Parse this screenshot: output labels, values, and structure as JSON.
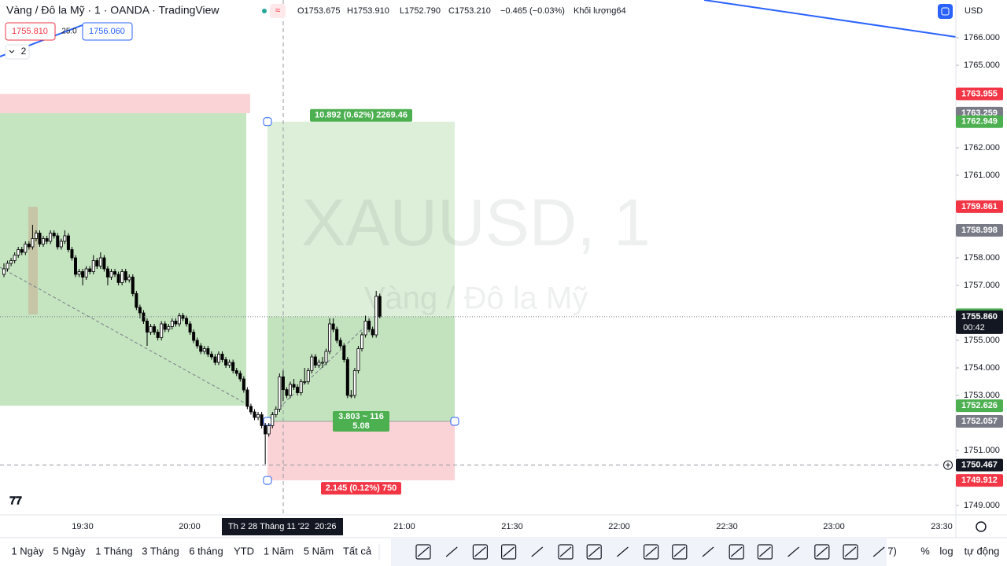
{
  "header": {
    "title": "Vàng / Đô la Mỹ · 1 · OANDA · TradingView",
    "open": "O1753.675",
    "high": "H1753.910",
    "low": "L1752.790",
    "close": "C1753.210",
    "change": "−0.465 (−0.03%)",
    "volume": "Khối lượng64",
    "currency": "USD"
  },
  "trade_buttons": {
    "sell": "1755.810",
    "spread": "25.0",
    "buy": "1756.060",
    "indicators": "2"
  },
  "chart_data": {
    "type": "candlestick",
    "watermark": "XAUUSD, 1",
    "watermark_subtitle": "Vàng / Đô la Mỹ",
    "up_color": "#ffffff",
    "down_color": "#000000",
    "ylim": [
      1748.657,
      1767.371
    ],
    "yticks": [
      {
        "value": 1749,
        "label": "1749.000"
      },
      {
        "value": 1751,
        "label": "1751.000"
      },
      {
        "value": 1753,
        "label": "1753.000"
      },
      {
        "value": 1754,
        "label": "1754.000"
      },
      {
        "value": 1755,
        "label": "1755.000"
      },
      {
        "value": 1757,
        "label": "1757.000"
      },
      {
        "value": 1758,
        "label": "1758.000"
      },
      {
        "value": 1761,
        "label": "1761.000"
      },
      {
        "value": 1762,
        "label": "1762.000"
      },
      {
        "value": 1765,
        "label": "1765.000"
      },
      {
        "value": 1766,
        "label": "1766.000"
      }
    ],
    "price_labels": [
      {
        "value": 1763.955,
        "color": "#f23645"
      },
      {
        "value": 1763.259,
        "color": "#787b86"
      },
      {
        "value": 1762.949,
        "color": "#4caf50"
      },
      {
        "value": 1759.861,
        "color": "#f23645"
      },
      {
        "value": 1758.998,
        "color": "#787b86"
      },
      {
        "value": 1755.932,
        "color": "#4caf50"
      },
      {
        "value": 1755.86,
        "label": "1755.860",
        "color": "#131722"
      },
      {
        "value": 1752.626,
        "color": "#4caf50"
      },
      {
        "value": 1752.057,
        "color": "#787b86"
      },
      {
        "value": 1750.467,
        "color": "#131722"
      },
      {
        "value": 1749.912,
        "color": "#f23645"
      }
    ],
    "countdown": "00:42",
    "positions": [
      {
        "entry": 1763.259,
        "stop": 1763.955,
        "target": 1752.626
      },
      {
        "entry": 1752.057,
        "stop": 1749.912,
        "target": 1762.949
      }
    ],
    "position_labels": {
      "target": "10.892 (0.62%) 2269.46",
      "ratio": "3.803 ~ 116",
      "qty": "5.08",
      "stop": "2.145 (0.12%) 750"
    },
    "ohlc": [
      [
        1757.4,
        1757.8,
        1757.3,
        1757.6
      ],
      [
        1757.6,
        1757.9,
        1757.5,
        1757.8
      ],
      [
        1757.8,
        1758.0,
        1757.7,
        1757.9
      ],
      [
        1757.9,
        1758.2,
        1757.8,
        1758.1
      ],
      [
        1758.1,
        1758.4,
        1758.0,
        1758.3
      ],
      [
        1758.3,
        1758.4,
        1758.1,
        1758.2
      ],
      [
        1758.2,
        1758.6,
        1758.1,
        1758.5
      ],
      [
        1758.5,
        1758.6,
        1758.3,
        1758.4
      ],
      [
        1758.4,
        1759.2,
        1758.3,
        1758.7
      ],
      [
        1758.7,
        1759.0,
        1758.6,
        1758.9
      ],
      [
        1758.9,
        1759.0,
        1758.4,
        1758.5
      ],
      [
        1758.5,
        1758.8,
        1758.4,
        1758.7
      ],
      [
        1758.7,
        1758.8,
        1758.5,
        1758.6
      ],
      [
        1758.6,
        1759.0,
        1758.5,
        1758.9
      ],
      [
        1758.9,
        1759.0,
        1758.7,
        1758.8
      ],
      [
        1758.8,
        1758.9,
        1758.3,
        1758.4
      ],
      [
        1758.4,
        1758.7,
        1758.3,
        1758.6
      ],
      [
        1758.6,
        1759.0,
        1758.5,
        1758.8
      ],
      [
        1758.8,
        1758.9,
        1758.2,
        1758.3
      ],
      [
        1758.3,
        1758.4,
        1757.9,
        1758.0
      ],
      [
        1758.0,
        1758.1,
        1757.3,
        1757.4
      ],
      [
        1757.4,
        1757.6,
        1757.3,
        1757.5
      ],
      [
        1757.5,
        1757.6,
        1757.0,
        1757.3
      ],
      [
        1757.3,
        1757.7,
        1757.2,
        1757.6
      ],
      [
        1757.6,
        1757.7,
        1757.4,
        1757.5
      ],
      [
        1757.5,
        1758.1,
        1757.4,
        1757.9
      ],
      [
        1757.9,
        1758.0,
        1757.6,
        1757.7
      ],
      [
        1757.7,
        1758.2,
        1757.6,
        1758.0
      ],
      [
        1758.0,
        1758.1,
        1757.5,
        1757.6
      ],
      [
        1757.6,
        1757.7,
        1757.0,
        1757.3
      ],
      [
        1757.3,
        1757.6,
        1757.2,
        1757.5
      ],
      [
        1757.5,
        1757.6,
        1757.3,
        1757.4
      ],
      [
        1757.4,
        1757.5,
        1757.0,
        1757.1
      ],
      [
        1757.1,
        1757.6,
        1757.0,
        1757.5
      ],
      [
        1757.5,
        1757.6,
        1757.1,
        1757.2
      ],
      [
        1757.2,
        1757.4,
        1757.1,
        1757.3
      ],
      [
        1757.3,
        1757.4,
        1756.6,
        1756.7
      ],
      [
        1756.7,
        1756.8,
        1756.1,
        1756.2
      ],
      [
        1756.2,
        1756.3,
        1755.8,
        1756.0
      ],
      [
        1756.0,
        1756.1,
        1755.6,
        1755.7
      ],
      [
        1755.7,
        1755.8,
        1754.8,
        1755.3
      ],
      [
        1755.3,
        1755.6,
        1755.2,
        1755.5
      ],
      [
        1755.5,
        1755.6,
        1755.2,
        1755.3
      ],
      [
        1755.3,
        1755.4,
        1755.0,
        1755.1
      ],
      [
        1755.1,
        1755.7,
        1755.0,
        1755.6
      ],
      [
        1755.6,
        1755.7,
        1755.3,
        1755.4
      ],
      [
        1755.4,
        1755.6,
        1755.3,
        1755.5
      ],
      [
        1755.5,
        1755.8,
        1755.4,
        1755.7
      ],
      [
        1755.7,
        1755.8,
        1755.5,
        1755.6
      ],
      [
        1755.6,
        1756.0,
        1755.5,
        1755.9
      ],
      [
        1755.9,
        1756.0,
        1755.7,
        1755.8
      ],
      [
        1755.8,
        1755.9,
        1755.5,
        1755.6
      ],
      [
        1755.6,
        1755.7,
        1755.2,
        1755.3
      ],
      [
        1755.3,
        1755.4,
        1754.9,
        1755.0
      ],
      [
        1755.0,
        1755.1,
        1754.7,
        1754.8
      ],
      [
        1754.8,
        1754.9,
        1754.5,
        1754.6
      ],
      [
        1754.6,
        1754.8,
        1754.5,
        1754.7
      ],
      [
        1754.7,
        1754.8,
        1754.4,
        1754.5
      ],
      [
        1754.5,
        1754.6,
        1754.3,
        1754.4
      ],
      [
        1754.4,
        1754.5,
        1754.1,
        1754.2
      ],
      [
        1754.2,
        1754.6,
        1754.1,
        1754.5
      ],
      [
        1754.5,
        1754.6,
        1754.2,
        1754.3
      ],
      [
        1754.3,
        1754.4,
        1754.0,
        1754.1
      ],
      [
        1754.1,
        1754.3,
        1754.0,
        1754.2
      ],
      [
        1754.2,
        1754.3,
        1753.8,
        1753.9
      ],
      [
        1753.9,
        1754.0,
        1753.7,
        1753.8
      ],
      [
        1753.8,
        1753.9,
        1753.5,
        1753.6
      ],
      [
        1753.6,
        1753.7,
        1753.1,
        1753.2
      ],
      [
        1753.2,
        1753.3,
        1752.5,
        1752.6
      ],
      [
        1752.6,
        1752.7,
        1752.3,
        1752.4
      ],
      [
        1752.4,
        1752.5,
        1752.1,
        1752.2
      ],
      [
        1752.2,
        1752.4,
        1752.1,
        1752.3
      ],
      [
        1752.3,
        1752.4,
        1751.8,
        1751.9
      ],
      [
        1751.9,
        1752.0,
        1750.5,
        1751.6
      ],
      [
        1751.6,
        1752.0,
        1751.5,
        1751.9
      ],
      [
        1751.9,
        1752.4,
        1751.8,
        1752.3
      ],
      [
        1752.3,
        1752.6,
        1752.2,
        1752.5
      ],
      [
        1752.5,
        1753.8,
        1752.4,
        1753.675
      ],
      [
        1753.675,
        1753.91,
        1752.79,
        1753.21
      ],
      [
        1753.21,
        1753.3,
        1752.9,
        1753.0
      ],
      [
        1753.0,
        1753.5,
        1752.9,
        1753.4
      ],
      [
        1753.4,
        1753.6,
        1753.2,
        1753.3
      ],
      [
        1753.3,
        1753.4,
        1753.0,
        1753.1
      ],
      [
        1753.1,
        1753.6,
        1753.0,
        1753.5
      ],
      [
        1753.5,
        1754.0,
        1753.4,
        1753.5
      ],
      [
        1753.5,
        1754.0,
        1753.4,
        1753.9
      ],
      [
        1753.9,
        1754.5,
        1753.8,
        1754.4
      ],
      [
        1754.4,
        1754.5,
        1754.0,
        1754.1
      ],
      [
        1754.1,
        1754.3,
        1754.0,
        1754.2
      ],
      [
        1754.2,
        1754.4,
        1754.0,
        1754.2
      ],
      [
        1754.2,
        1754.7,
        1754.1,
        1754.6
      ],
      [
        1754.6,
        1755.8,
        1754.5,
        1755.6
      ],
      [
        1755.6,
        1755.8,
        1755.3,
        1755.4
      ],
      [
        1755.4,
        1755.5,
        1754.9,
        1755.0
      ],
      [
        1755.0,
        1755.1,
        1754.7,
        1754.8
      ],
      [
        1754.8,
        1754.9,
        1754.2,
        1754.3
      ],
      [
        1754.3,
        1754.4,
        1752.9,
        1753.0
      ],
      [
        1753.0,
        1753.2,
        1752.9,
        1753.0
      ],
      [
        1753.0,
        1754.0,
        1752.9,
        1753.9
      ],
      [
        1753.9,
        1754.8,
        1753.8,
        1754.7
      ],
      [
        1754.7,
        1755.3,
        1754.6,
        1755.2
      ],
      [
        1755.2,
        1755.9,
        1755.1,
        1755.7
      ],
      [
        1755.7,
        1755.8,
        1755.3,
        1755.4
      ],
      [
        1755.4,
        1755.5,
        1755.1,
        1755.2
      ],
      [
        1755.2,
        1756.8,
        1755.1,
        1756.6
      ],
      [
        1756.6,
        1756.7,
        1755.8,
        1755.86
      ]
    ]
  },
  "time_axis": {
    "labels": [
      "19:30",
      "20:00",
      "21:00",
      "21:30",
      "22:00",
      "22:30",
      "23:00",
      "23:30"
    ],
    "crosshair_date": "Th 2 28 Tháng 11 '22",
    "crosshair_time": "20:26"
  },
  "toolbar": {
    "ranges": [
      "1 Ngày",
      "5 Ngày",
      "1 Tháng",
      "3 Tháng",
      "6 tháng",
      "YTD",
      "1 Năm",
      "5 Năm",
      "Tất cả"
    ],
    "partial": "7)",
    "percent": "%",
    "log": "log",
    "auto": "tự động"
  }
}
